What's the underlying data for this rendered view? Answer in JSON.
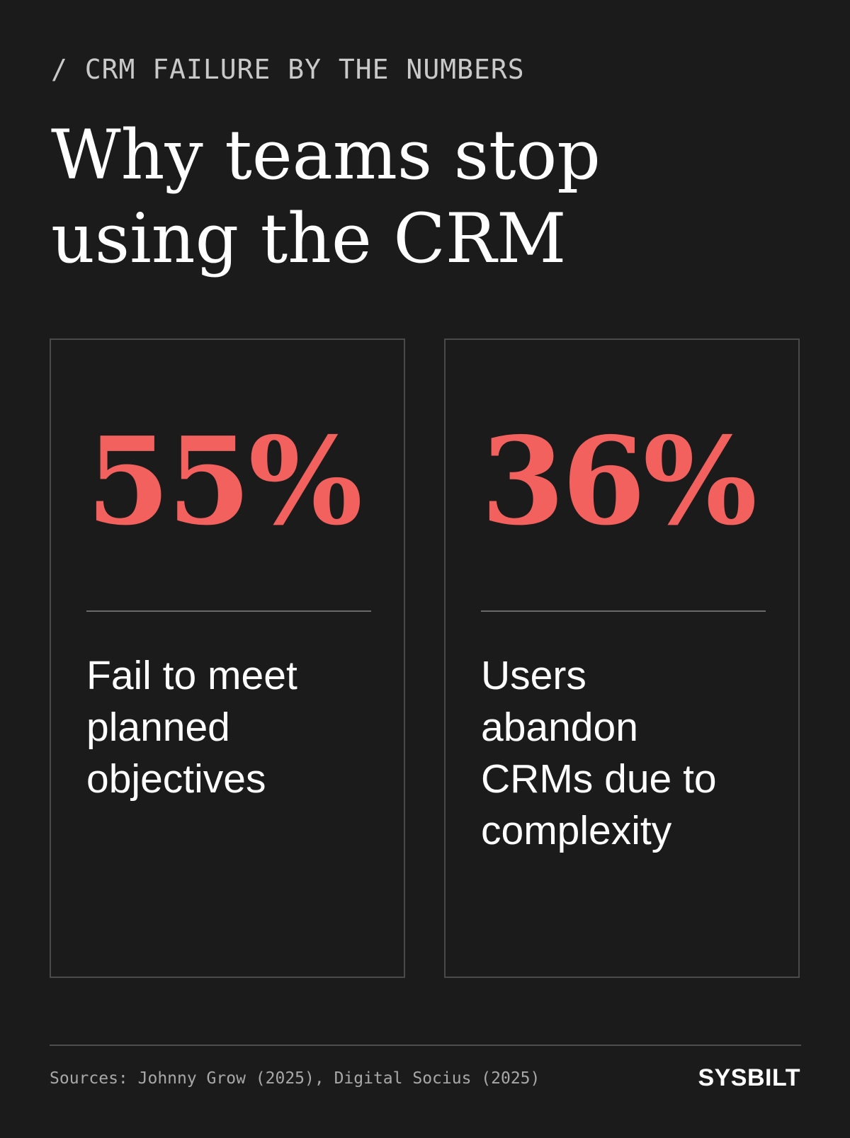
{
  "header": {
    "eyebrow": "/ CRM FAILURE BY THE NUMBERS",
    "title_lines": [
      "Why teams stop",
      "using the CRM"
    ]
  },
  "stats": [
    {
      "value": "55%",
      "description_lines": [
        "Fail to meet",
        "planned",
        "objectives"
      ]
    },
    {
      "value": "36%",
      "description_lines": [
        "Users",
        "abandon",
        "CRMs due to",
        "complexity"
      ]
    }
  ],
  "footer": {
    "sources": "Sources: Johnny Grow (2025), Digital Socius (2025)",
    "brand": "SYSBILT"
  },
  "colors": {
    "background": "#1b1b1b",
    "accent": "#f2615d",
    "text": "#ffffff",
    "muted": "#a8a8a8",
    "border": "#4a4a4a"
  }
}
